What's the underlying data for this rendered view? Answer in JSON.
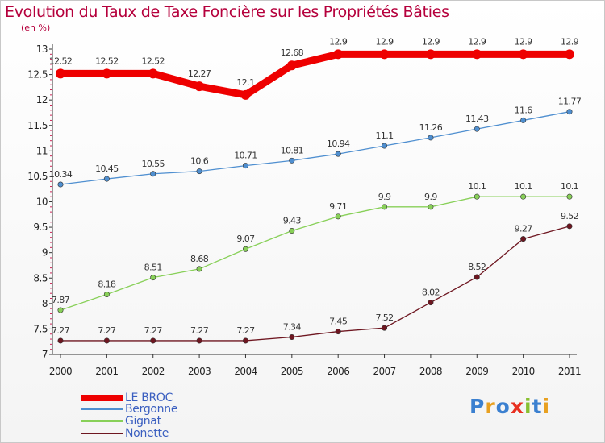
{
  "header": {
    "title": "Evolution du Taux de Taxe Foncière sur les Propriétés Bâties",
    "unit": "(en %)"
  },
  "logo": {
    "text": "Proxiti"
  },
  "chart_data": {
    "type": "line",
    "title": "Evolution du Taux de Taxe Foncière sur les Propriétés Bâties",
    "ylabel": "(en %)",
    "xlabel": "",
    "ylim": [
      7,
      13
    ],
    "yticks": [
      "7",
      "7.5",
      "8",
      "8.5",
      "9",
      "9.5",
      "10",
      "10.5",
      "11",
      "11.5",
      "12",
      "12.5",
      "13"
    ],
    "categories": [
      "2000",
      "2001",
      "2002",
      "2003",
      "2004",
      "2005",
      "2006",
      "2007",
      "2008",
      "2009",
      "2010",
      "2011"
    ],
    "legend_position": "bottom-left",
    "series": [
      {
        "name": "LE BROC",
        "color": "#ee0000",
        "labels": [
          "12.52",
          "12.52",
          "12.52",
          "12.27",
          "12.1",
          "12.68",
          "12.9",
          "12.9",
          "12.9",
          "12.9",
          "12.9",
          "12.9"
        ],
        "values": [
          12.52,
          12.52,
          12.52,
          12.27,
          12.1,
          12.68,
          12.9,
          12.9,
          12.9,
          12.9,
          12.9,
          12.9
        ]
      },
      {
        "name": "Bergonne",
        "color": "#4f8fd0",
        "labels": [
          "10.34",
          "10.45",
          "10.55",
          "10.6",
          "10.71",
          "10.81",
          "10.94",
          "11.1",
          "11.26",
          "11.43",
          "11.6",
          "11.77"
        ],
        "values": [
          10.34,
          10.45,
          10.55,
          10.6,
          10.71,
          10.81,
          10.94,
          11.1,
          11.26,
          11.43,
          11.6,
          11.77
        ]
      },
      {
        "name": "Gignat",
        "color": "#88d058",
        "labels": [
          "7.87",
          "8.18",
          "8.51",
          "8.68",
          "9.07",
          "9.43",
          "9.71",
          "9.9",
          "9.9",
          "10.1",
          "10.1",
          "10.1"
        ],
        "values": [
          7.87,
          8.18,
          8.51,
          8.68,
          9.07,
          9.43,
          9.71,
          9.9,
          9.9,
          10.1,
          10.1,
          10.1
        ]
      },
      {
        "name": "Nonette",
        "color": "#6e1620",
        "labels": [
          "7.27",
          "7.27",
          "7.27",
          "7.27",
          "7.27",
          "7.34",
          "7.45",
          "7.52",
          "8.02",
          "8.52",
          "9.27",
          "9.52"
        ],
        "values": [
          7.27,
          7.27,
          7.27,
          7.27,
          7.27,
          7.34,
          7.45,
          7.52,
          8.02,
          8.52,
          9.27,
          9.52
        ]
      }
    ]
  }
}
